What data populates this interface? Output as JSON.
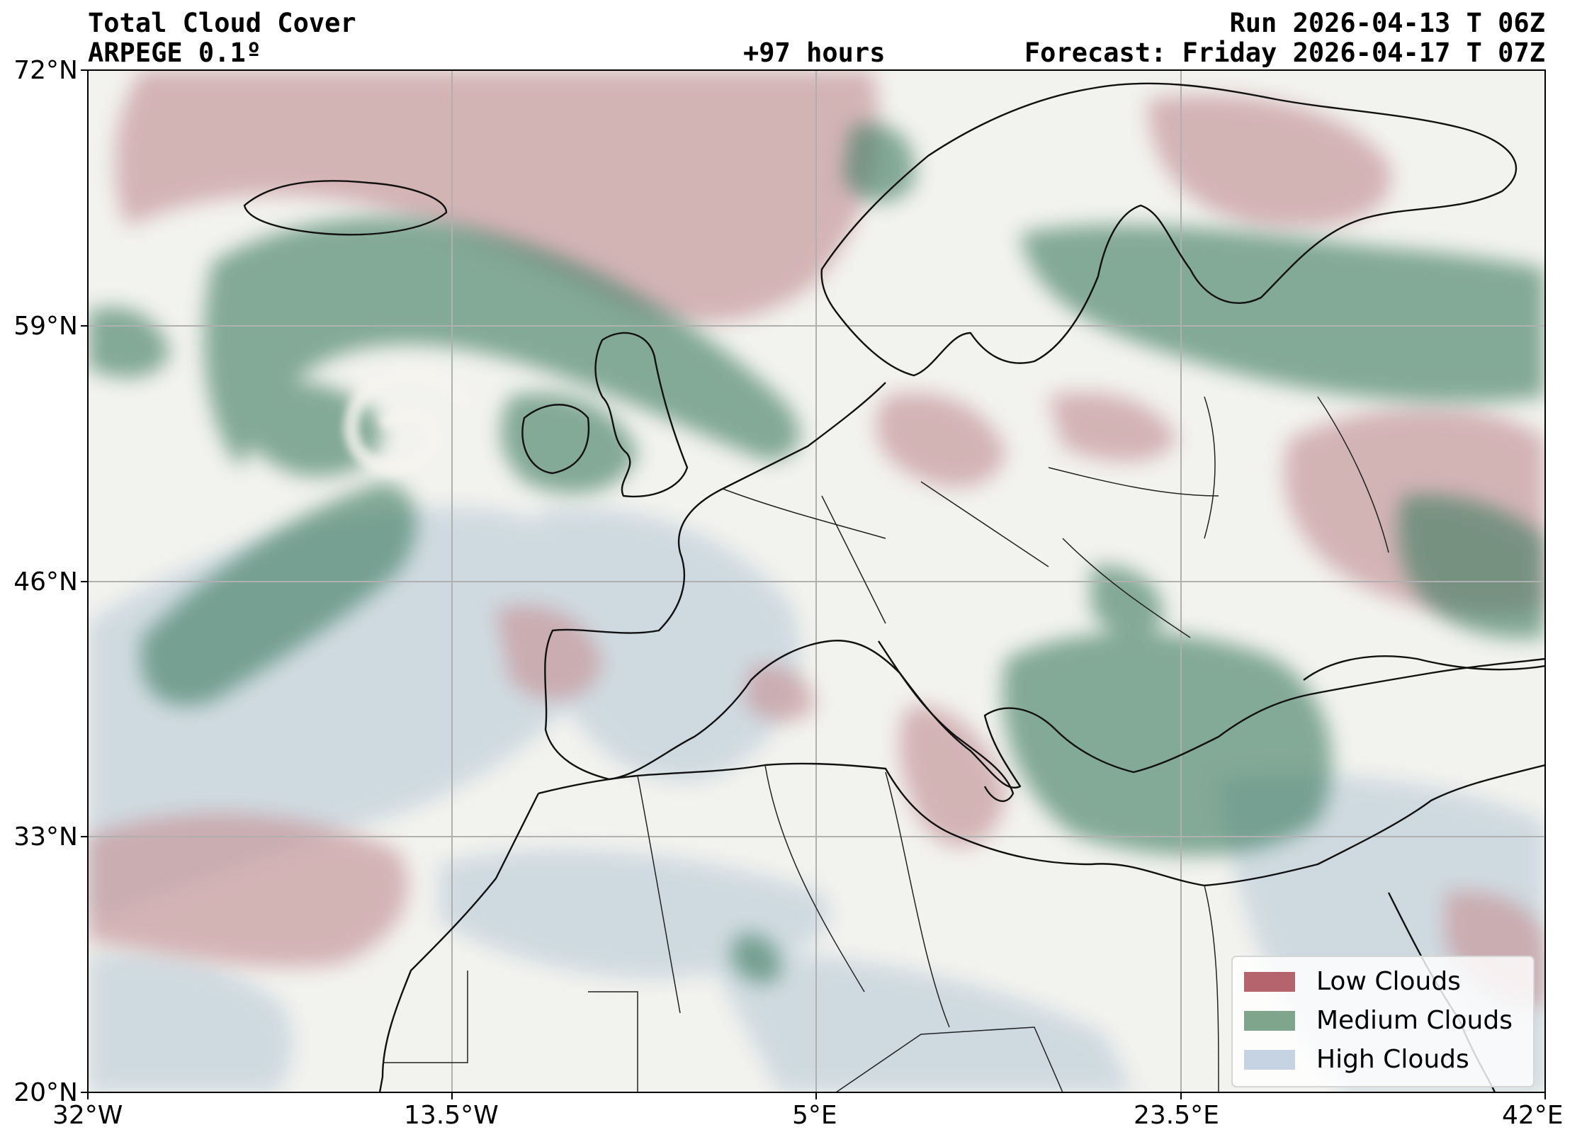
{
  "header": {
    "title": "Total Cloud Cover",
    "model": "ARPEGE 0.1º",
    "lead_time": "+97 hours",
    "run": "Run 2026-04-13 T 06Z",
    "forecast": "Forecast: Friday 2026-04-17 T 07Z"
  },
  "axes": {
    "lat_ticks": [
      "72°N",
      "59°N",
      "46°N",
      "33°N",
      "20°N"
    ],
    "lon_ticks": [
      "32°W",
      "13.5°W",
      "5°E",
      "23.5°E",
      "42°E"
    ]
  },
  "legend": {
    "placement": "bottom-right",
    "items": [
      {
        "label": "Low Clouds",
        "color": "#b5636c"
      },
      {
        "label": "Medium Clouds",
        "color": "#7fa68c"
      },
      {
        "label": "High Clouds",
        "color": "#c6d3e2"
      }
    ]
  },
  "colors": {
    "background": "#f2f2ee",
    "low": "#c79a9e",
    "medium": "#3f7d62",
    "high": "#b4c7d6",
    "coast": "#111111",
    "grid": "#b0b0b0"
  }
}
